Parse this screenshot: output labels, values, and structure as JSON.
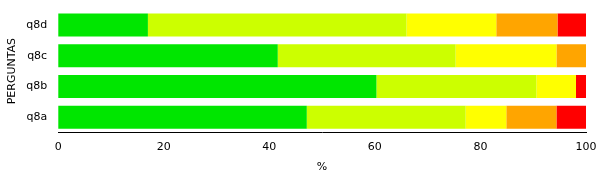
{
  "chart_data": {
    "type": "bar",
    "orientation": "horizontal",
    "stacked": true,
    "xlabel": "%",
    "ylabel": "PERGUNTAS",
    "categories": [
      "q8d",
      "q8c",
      "q8b",
      "q8a"
    ],
    "series": [
      {
        "color": "#00e600",
        "values": [
          17,
          41.6,
          60.3,
          47.1
        ]
      },
      {
        "color": "#ccff00",
        "values": [
          49,
          33.7,
          30.3,
          30.1
        ]
      },
      {
        "color": "#ffff00",
        "values": [
          17,
          19.1,
          7.5,
          7.7
        ]
      },
      {
        "color": "#ffa500",
        "values": [
          11.6,
          5.6,
          0,
          9.5
        ]
      },
      {
        "color": "#ff0000",
        "values": [
          5.4,
          0,
          1.9,
          5.6
        ]
      }
    ],
    "xlim": [
      0,
      100
    ],
    "xticks": [
      0,
      20,
      40,
      60,
      80,
      100
    ],
    "grid": false,
    "legend": false
  }
}
